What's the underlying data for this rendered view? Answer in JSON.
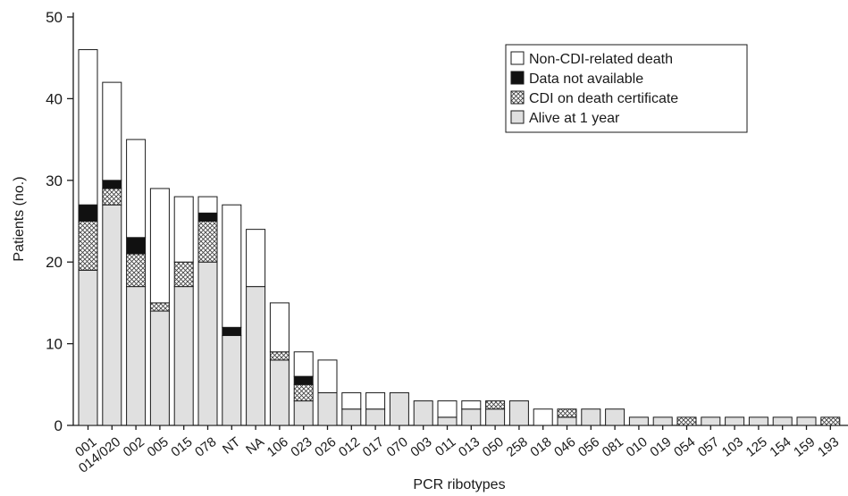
{
  "chart_data": {
    "type": "bar",
    "stacked": true,
    "title": "",
    "xlabel": "PCR ribotypes",
    "ylabel": "Patients (no.)",
    "ylim": [
      0,
      50
    ],
    "yticks": [
      0,
      10,
      20,
      30,
      40,
      50
    ],
    "grid": false,
    "legend_position": "top-right",
    "categories": [
      "001",
      "014/020",
      "002",
      "005",
      "015",
      "078",
      "NT",
      "NA",
      "106",
      "023",
      "026",
      "012",
      "017",
      "070",
      "003",
      "011",
      "013",
      "050",
      "258",
      "018",
      "046",
      "056",
      "081",
      "010",
      "019",
      "054",
      "057",
      "103",
      "125",
      "154",
      "159",
      "193"
    ],
    "series": [
      {
        "name": "Alive at 1 year",
        "fill": "#e0e0e0",
        "values": [
          19,
          27,
          17,
          14,
          17,
          20,
          11,
          17,
          8,
          3,
          4,
          2,
          2,
          4,
          3,
          1,
          2,
          2,
          3,
          0,
          1,
          2,
          2,
          1,
          1,
          0,
          1,
          1,
          1,
          1,
          1,
          0
        ]
      },
      {
        "name": "CDI on death certificate",
        "fill": "hatch",
        "values": [
          6,
          2,
          4,
          1,
          3,
          5,
          0,
          0,
          1,
          2,
          0,
          0,
          0,
          0,
          0,
          0,
          0,
          1,
          0,
          0,
          1,
          0,
          0,
          0,
          0,
          1,
          0,
          0,
          0,
          0,
          0,
          1
        ]
      },
      {
        "name": "Data not available",
        "fill": "#111111",
        "values": [
          2,
          1,
          2,
          0,
          0,
          1,
          1,
          0,
          0,
          1,
          0,
          0,
          0,
          0,
          0,
          0,
          0,
          0,
          0,
          0,
          0,
          0,
          0,
          0,
          0,
          0,
          0,
          0,
          0,
          0,
          0,
          0
        ]
      },
      {
        "name": "Non-CDI-related death",
        "fill": "#ffffff",
        "values": [
          19,
          12,
          12,
          14,
          8,
          2,
          15,
          7,
          6,
          3,
          4,
          2,
          2,
          0,
          0,
          2,
          1,
          0,
          0,
          2,
          0,
          0,
          0,
          0,
          0,
          0,
          0,
          0,
          0,
          0,
          0,
          0
        ]
      }
    ],
    "legend_order": [
      "Non-CDI-related death",
      "Data not available",
      "CDI on death certificate",
      "Alive at 1 year"
    ]
  }
}
